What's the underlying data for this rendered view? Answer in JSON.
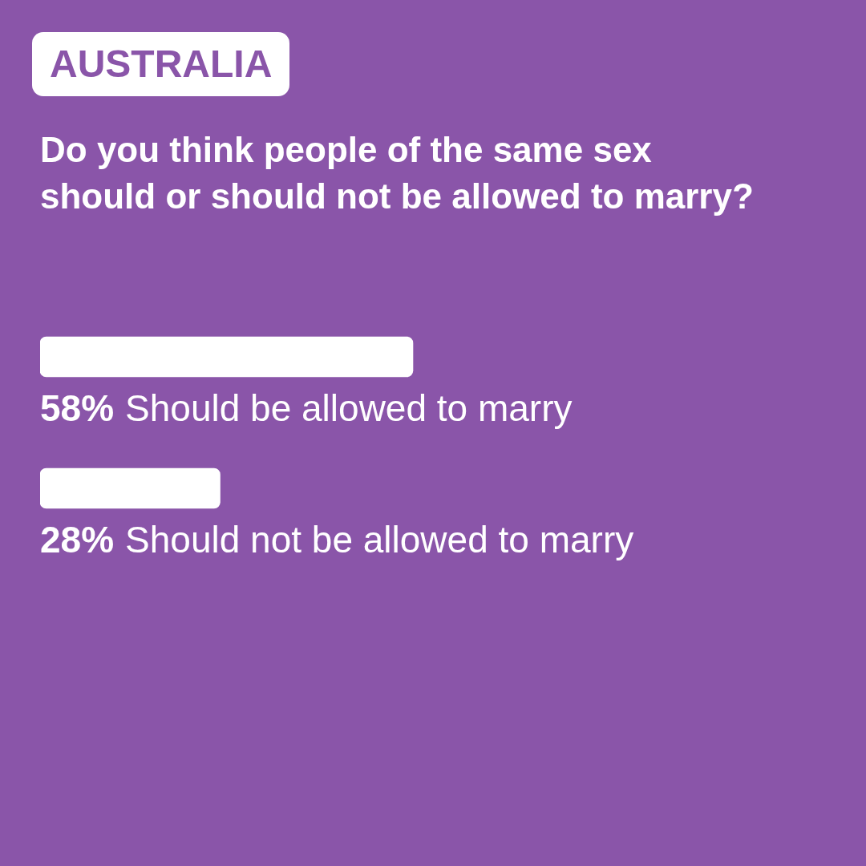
{
  "chart_data": {
    "type": "bar",
    "orientation": "horizontal",
    "title": "Do you think people of the same sex should or should not be allowed to marry?",
    "annotations": [
      "AUSTRALIA"
    ],
    "categories": [
      "Should be allowed to marry",
      "Should not be allowed to marry"
    ],
    "values": [
      58,
      28
    ],
    "value_labels": [
      "58%",
      "28%"
    ],
    "color": "#ffffff",
    "tick_labels": false,
    "legend": false
  }
}
